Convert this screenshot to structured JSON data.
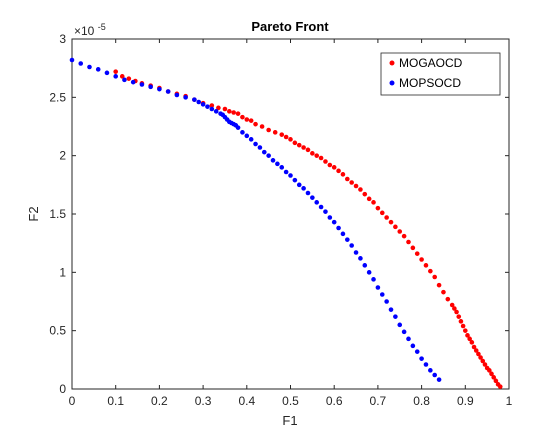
{
  "chart_data": {
    "type": "scatter",
    "title": "Pareto Front",
    "xlabel": "F1",
    "ylabel": "F2",
    "y_exponent_label": "×10",
    "y_exponent_power": "-5",
    "xlim": [
      0,
      1
    ],
    "ylim": [
      0,
      3
    ],
    "xticks": [
      "0",
      "0.1",
      "0.2",
      "0.3",
      "0.4",
      "0.5",
      "0.6",
      "0.7",
      "0.8",
      "0.9",
      "1"
    ],
    "yticks": [
      "0",
      "0.5",
      "1",
      "1.5",
      "2",
      "2.5",
      "3"
    ],
    "grid": false,
    "legend_position": "top-right",
    "series": [
      {
        "name": "MOGAOCD",
        "color": "#ff0000",
        "x": [
          0.1,
          0.115,
          0.13,
          0.145,
          0.16,
          0.18,
          0.2,
          0.22,
          0.24,
          0.26,
          0.28,
          0.3,
          0.32,
          0.335,
          0.35,
          0.36,
          0.37,
          0.38,
          0.39,
          0.4,
          0.41,
          0.42,
          0.435,
          0.45,
          0.465,
          0.48,
          0.49,
          0.5,
          0.51,
          0.52,
          0.53,
          0.54,
          0.55,
          0.56,
          0.57,
          0.58,
          0.59,
          0.6,
          0.61,
          0.62,
          0.63,
          0.64,
          0.65,
          0.66,
          0.67,
          0.68,
          0.69,
          0.7,
          0.71,
          0.72,
          0.73,
          0.74,
          0.75,
          0.76,
          0.77,
          0.78,
          0.79,
          0.8,
          0.81,
          0.82,
          0.83,
          0.84,
          0.85,
          0.86,
          0.87,
          0.875,
          0.88,
          0.885,
          0.89,
          0.895,
          0.9,
          0.905,
          0.91,
          0.915,
          0.92,
          0.925,
          0.93,
          0.935,
          0.94,
          0.945,
          0.95,
          0.955,
          0.96,
          0.965,
          0.97,
          0.975,
          0.98
        ],
        "y": [
          2.72,
          2.68,
          2.66,
          2.64,
          2.62,
          2.6,
          2.58,
          2.55,
          2.53,
          2.51,
          2.48,
          2.45,
          2.43,
          2.41,
          2.4,
          2.38,
          2.37,
          2.36,
          2.33,
          2.31,
          2.3,
          2.27,
          2.25,
          2.22,
          2.2,
          2.18,
          2.16,
          2.14,
          2.11,
          2.09,
          2.07,
          2.05,
          2.02,
          2.0,
          1.98,
          1.95,
          1.92,
          1.9,
          1.87,
          1.84,
          1.8,
          1.77,
          1.74,
          1.71,
          1.67,
          1.63,
          1.6,
          1.55,
          1.51,
          1.47,
          1.43,
          1.39,
          1.35,
          1.31,
          1.26,
          1.21,
          1.16,
          1.11,
          1.06,
          1.01,
          0.96,
          0.89,
          0.83,
          0.77,
          0.72,
          0.69,
          0.66,
          0.62,
          0.58,
          0.54,
          0.5,
          0.46,
          0.43,
          0.4,
          0.36,
          0.33,
          0.3,
          0.27,
          0.24,
          0.21,
          0.18,
          0.16,
          0.13,
          0.1,
          0.07,
          0.04,
          0.02
        ]
      },
      {
        "name": "MOPSOCD",
        "color": "#0000ff",
        "x": [
          0.0,
          0.02,
          0.04,
          0.06,
          0.08,
          0.1,
          0.12,
          0.14,
          0.16,
          0.18,
          0.2,
          0.22,
          0.24,
          0.26,
          0.28,
          0.29,
          0.3,
          0.31,
          0.32,
          0.33,
          0.34,
          0.345,
          0.35,
          0.355,
          0.36,
          0.365,
          0.37,
          0.375,
          0.38,
          0.39,
          0.4,
          0.41,
          0.42,
          0.43,
          0.44,
          0.45,
          0.46,
          0.47,
          0.48,
          0.49,
          0.5,
          0.51,
          0.52,
          0.53,
          0.54,
          0.55,
          0.56,
          0.57,
          0.58,
          0.59,
          0.6,
          0.61,
          0.62,
          0.63,
          0.64,
          0.65,
          0.66,
          0.67,
          0.68,
          0.69,
          0.7,
          0.71,
          0.72,
          0.73,
          0.74,
          0.75,
          0.76,
          0.77,
          0.78,
          0.79,
          0.8,
          0.81,
          0.82,
          0.83,
          0.84
        ],
        "y": [
          2.82,
          2.79,
          2.76,
          2.74,
          2.71,
          2.68,
          2.65,
          2.63,
          2.61,
          2.59,
          2.57,
          2.55,
          2.52,
          2.5,
          2.48,
          2.46,
          2.44,
          2.42,
          2.4,
          2.38,
          2.36,
          2.35,
          2.33,
          2.31,
          2.29,
          2.28,
          2.27,
          2.26,
          2.24,
          2.2,
          2.17,
          2.14,
          2.1,
          2.07,
          2.03,
          2.0,
          1.96,
          1.93,
          1.9,
          1.86,
          1.83,
          1.79,
          1.75,
          1.72,
          1.68,
          1.64,
          1.6,
          1.56,
          1.52,
          1.47,
          1.43,
          1.38,
          1.33,
          1.28,
          1.23,
          1.17,
          1.12,
          1.06,
          1.0,
          0.94,
          0.87,
          0.81,
          0.75,
          0.68,
          0.62,
          0.55,
          0.49,
          0.43,
          0.37,
          0.32,
          0.26,
          0.21,
          0.16,
          0.12,
          0.08
        ]
      }
    ]
  }
}
